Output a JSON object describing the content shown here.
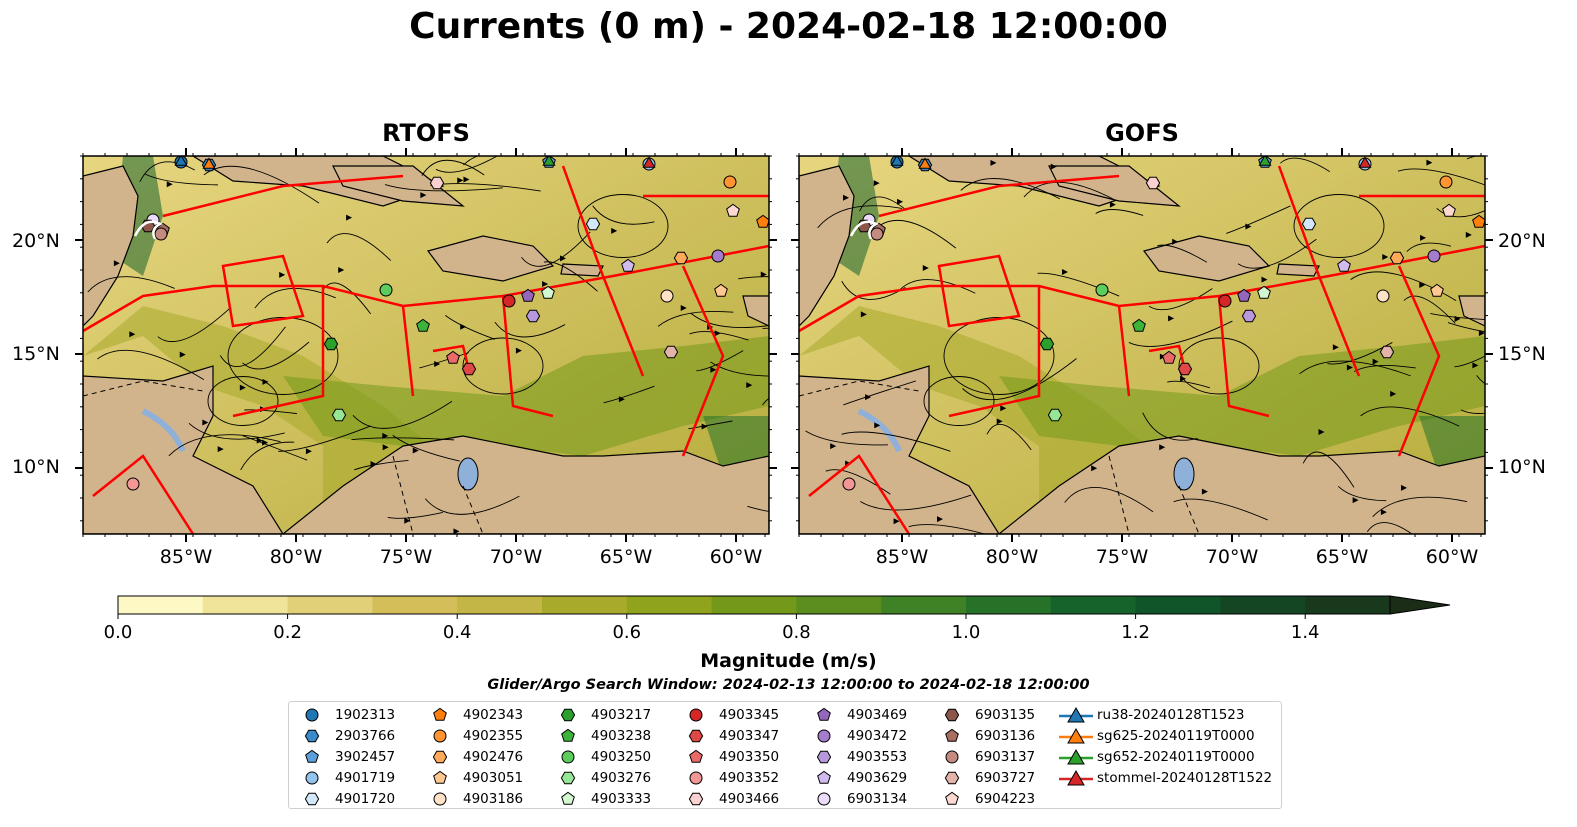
{
  "figure": {
    "title": "Currents (0 m) - 2024-02-18 12:00:00",
    "panels": [
      {
        "name": "RTOFS"
      },
      {
        "name": "GOFS"
      }
    ],
    "x_tick_labels": [
      "85°W",
      "80°W",
      "75°W",
      "70°W",
      "65°W",
      "60°W"
    ],
    "y_tick_labels": [
      "20°N",
      "15°N",
      "10°N"
    ],
    "colors": {
      "land": "#d2b48c",
      "lakes": "#8fb0d8",
      "eez_lines": "#ff0000",
      "streamlines": "#000000"
    }
  },
  "colorbar": {
    "label": "Magnitude (m/s)",
    "tick_labels": [
      "0.0",
      "0.2",
      "0.4",
      "0.6",
      "0.8",
      "1.0",
      "1.2",
      "1.4"
    ],
    "range": [
      0,
      1.5
    ],
    "extend": "max",
    "colors": [
      "#fdf8c4",
      "#f0e39a",
      "#e2d078",
      "#d4be5a",
      "#c3b546",
      "#a8aa2c",
      "#8fa31c",
      "#74991a",
      "#5b8e1e",
      "#3f8125",
      "#277229",
      "#16632c",
      "#0f5529",
      "#154623",
      "#19391c",
      "#1b2d17"
    ]
  },
  "search_window": "Glider/Argo Search Window: 2024-02-13 12:00:00 to 2024-02-18 12:00:00",
  "legend": {
    "columns": [
      [
        {
          "label": "1902313",
          "marker": "circle",
          "color": "#1f77b4"
        },
        {
          "label": "2903766",
          "marker": "hexagon",
          "color": "#3a8ac8"
        },
        {
          "label": "3902457",
          "marker": "pentagon",
          "color": "#5aa0dc"
        },
        {
          "label": "4901719",
          "marker": "circle",
          "color": "#93c4ee"
        },
        {
          "label": "4901720",
          "marker": "hexagon",
          "color": "#d2e8fa"
        }
      ],
      [
        {
          "label": "4902343",
          "marker": "pentagon",
          "color": "#ff7f0e"
        },
        {
          "label": "4902355",
          "marker": "circle",
          "color": "#ff9430"
        },
        {
          "label": "4902476",
          "marker": "hexagon",
          "color": "#ffaa5a"
        },
        {
          "label": "4903051",
          "marker": "pentagon",
          "color": "#ffc890"
        },
        {
          "label": "4903186",
          "marker": "circle",
          "color": "#ffe2c8"
        }
      ],
      [
        {
          "label": "4903217",
          "marker": "hexagon",
          "color": "#2ca02c"
        },
        {
          "label": "4903238",
          "marker": "pentagon",
          "color": "#3cb43c"
        },
        {
          "label": "4903250",
          "marker": "circle",
          "color": "#5ccc5c"
        },
        {
          "label": "4903276",
          "marker": "hexagon",
          "color": "#96e696"
        },
        {
          "label": "4903333",
          "marker": "pentagon",
          "color": "#d2f8d2"
        }
      ],
      [
        {
          "label": "4903345",
          "marker": "circle",
          "color": "#d62728"
        },
        {
          "label": "4903347",
          "marker": "hexagon",
          "color": "#e04848"
        },
        {
          "label": "4903350",
          "marker": "pentagon",
          "color": "#ea6a6a"
        },
        {
          "label": "4903352",
          "marker": "circle",
          "color": "#f29696"
        },
        {
          "label": "4903466",
          "marker": "hexagon",
          "color": "#fad0d0"
        }
      ],
      [
        {
          "label": "4903469",
          "marker": "pentagon",
          "color": "#9467bd"
        },
        {
          "label": "4903472",
          "marker": "circle",
          "color": "#a57ccc"
        },
        {
          "label": "4903553",
          "marker": "hexagon",
          "color": "#b898dc"
        },
        {
          "label": "4903629",
          "marker": "pentagon",
          "color": "#d0baee"
        },
        {
          "label": "6903134",
          "marker": "circle",
          "color": "#ecdcfc"
        }
      ],
      [
        {
          "label": "6903135",
          "marker": "hexagon",
          "color": "#8c564b"
        },
        {
          "label": "6903136",
          "marker": "pentagon",
          "color": "#a86e62"
        },
        {
          "label": "6903137",
          "marker": "circle",
          "color": "#c48c80"
        },
        {
          "label": "6903727",
          "marker": "hexagon",
          "color": "#e4b4aa"
        },
        {
          "label": "6904223",
          "marker": "pentagon",
          "color": "#fcd8d0"
        }
      ],
      [
        {
          "label": "ru38-20240128T1523",
          "marker": "triangle",
          "color": "#1f77b4"
        },
        {
          "label": "sg625-20240119T0000",
          "marker": "triangle",
          "color": "#ff7f0e"
        },
        {
          "label": "sg652-20240119T0000",
          "marker": "triangle",
          "color": "#2ca02c"
        },
        {
          "label": "stommel-20240128T1522",
          "marker": "triangle",
          "color": "#d62728"
        }
      ]
    ]
  }
}
